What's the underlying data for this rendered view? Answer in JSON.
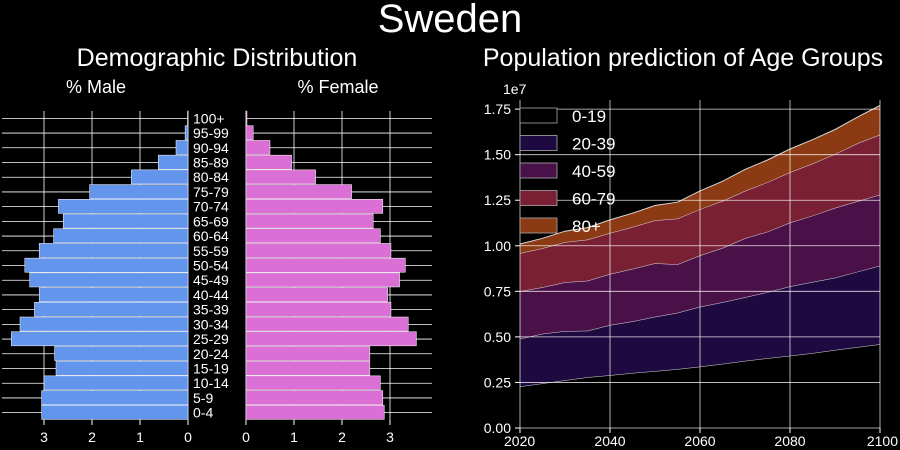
{
  "figure": {
    "title": "Sweden"
  },
  "chart_data": [
    {
      "type": "bar",
      "orientation": "horizontal",
      "title": "Demographic Distribution",
      "categories": [
        "0-4",
        "5-9",
        "10-14",
        "15-19",
        "20-24",
        "25-29",
        "30-34",
        "35-39",
        "40-44",
        "45-49",
        "50-54",
        "55-59",
        "60-64",
        "65-69",
        "70-74",
        "75-79",
        "80-84",
        "85-89",
        "90-94",
        "95-99",
        "100+"
      ],
      "series": [
        {
          "name": "% Male",
          "color": "#6495ed",
          "values": [
            3.05,
            3.05,
            3.0,
            2.75,
            2.78,
            3.68,
            3.5,
            3.2,
            3.1,
            3.3,
            3.4,
            3.1,
            2.8,
            2.6,
            2.7,
            2.05,
            1.18,
            0.62,
            0.25,
            0.06,
            0.01
          ]
        },
        {
          "name": "% Female",
          "color": "#da70d6",
          "values": [
            2.88,
            2.85,
            2.8,
            2.58,
            2.58,
            3.55,
            3.38,
            3.02,
            2.95,
            3.2,
            3.32,
            3.02,
            2.8,
            2.65,
            2.85,
            2.2,
            1.45,
            0.95,
            0.5,
            0.15,
            0.02
          ]
        }
      ],
      "xlim": [
        0,
        4
      ],
      "male_ticks": [
        3,
        2,
        1,
        0
      ],
      "female_ticks": [
        0,
        1,
        2,
        3
      ],
      "grid": true
    },
    {
      "type": "area",
      "stacked": true,
      "title": "Population prediction of Age Groups",
      "offset_label": "1e7",
      "x": [
        2020,
        2025,
        2030,
        2035,
        2040,
        2045,
        2050,
        2055,
        2060,
        2065,
        2070,
        2075,
        2080,
        2085,
        2090,
        2095,
        2100
      ],
      "series": [
        {
          "name": "0-19",
          "color": "#000000",
          "values": [
            2280000,
            2450000,
            2620000,
            2780000,
            2900000,
            3020000,
            3120000,
            3230000,
            3370000,
            3520000,
            3680000,
            3830000,
            3960000,
            4110000,
            4280000,
            4440000,
            4600000
          ]
        },
        {
          "name": "20-39",
          "color": "#1e0a40",
          "values": [
            2620000,
            2720000,
            2700000,
            2560000,
            2750000,
            2830000,
            2980000,
            3100000,
            3280000,
            3380000,
            3500000,
            3620000,
            3810000,
            3900000,
            3970000,
            4140000,
            4300000
          ]
        },
        {
          "name": "40-59",
          "color": "#4a1048",
          "values": [
            2600000,
            2550000,
            2680000,
            2740000,
            2800000,
            2880000,
            2940000,
            2650000,
            2820000,
            2980000,
            3230000,
            3320000,
            3500000,
            3640000,
            3830000,
            3860000,
            3900000
          ]
        },
        {
          "name": "60-79",
          "color": "#7a2034",
          "values": [
            2100000,
            2140000,
            2200000,
            2260000,
            2250000,
            2300000,
            2350000,
            2510000,
            2540000,
            2580000,
            2600000,
            2720000,
            2760000,
            2860000,
            2950000,
            3180000,
            3300000
          ]
        },
        {
          "name": "80+",
          "color": "#8c3a14",
          "values": [
            500000,
            550000,
            600000,
            660000,
            720000,
            760000,
            820000,
            900000,
            1000000,
            1080000,
            1180000,
            1220000,
            1280000,
            1310000,
            1350000,
            1440000,
            1600000
          ]
        }
      ],
      "xlim": [
        2020,
        2100
      ],
      "ylim": [
        0,
        18000000
      ],
      "xticks": [
        2020,
        2040,
        2060,
        2080,
        2100
      ],
      "yticks": [
        0,
        2500000,
        5000000,
        7500000,
        10000000,
        12500000,
        15000000,
        17500000
      ],
      "ytick_labels": [
        "0.00",
        "0.25",
        "0.50",
        "0.75",
        "1.00",
        "1.25",
        "1.50",
        "1.75"
      ],
      "legend": "top-left",
      "grid": true
    }
  ]
}
